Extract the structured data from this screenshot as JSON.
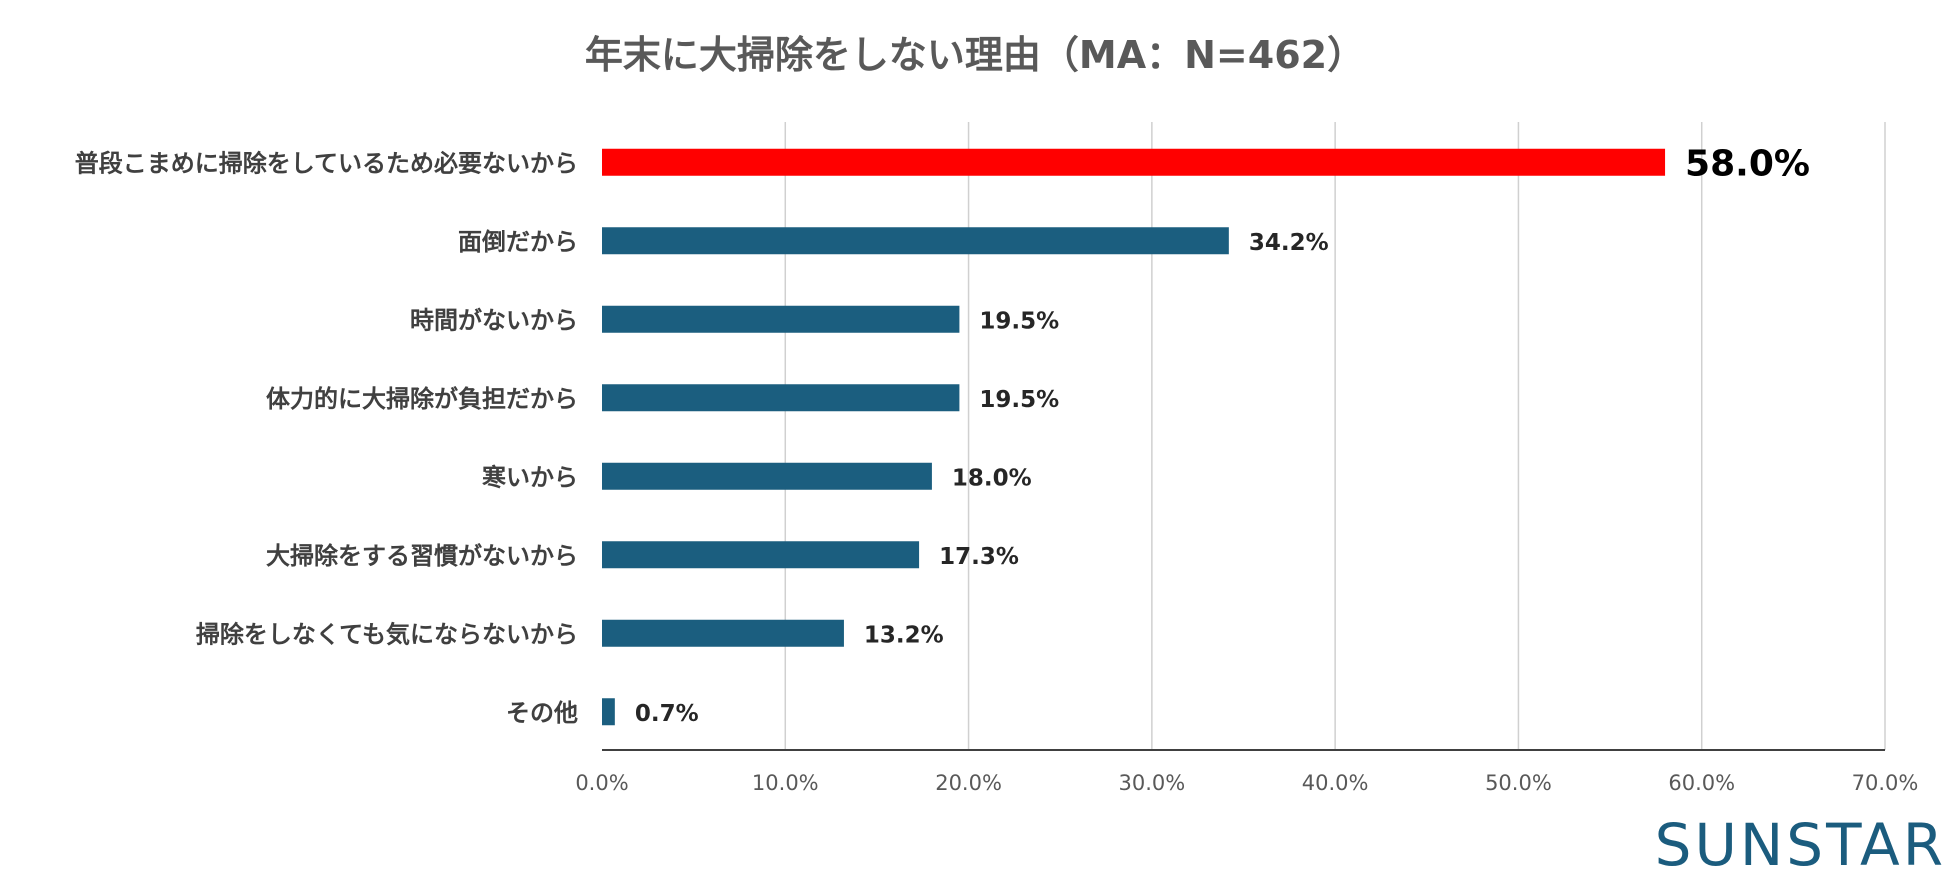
{
  "chart_data": {
    "type": "bar",
    "orientation": "horizontal",
    "title": "年末に大掃除をしない理由（MA：N=462）",
    "categories": [
      "普段こまめに掃除をしているため必要ないから",
      "面倒だから",
      "時間がないから",
      "体力的に大掃除が負担だから",
      "寒いから",
      "大掃除をする習慣がないから",
      "掃除をしなくても気にならないから",
      "その他"
    ],
    "values": [
      58.0,
      34.2,
      19.5,
      19.5,
      18.0,
      17.3,
      13.2,
      0.7
    ],
    "value_labels": [
      "58.0%",
      "34.2%",
      "19.5%",
      "19.5%",
      "18.0%",
      "17.3%",
      "13.2%",
      "0.7%"
    ],
    "xlim": [
      0,
      70
    ],
    "xticks": [
      "0.0%",
      "10.0%",
      "20.0%",
      "30.0%",
      "40.0%",
      "50.0%",
      "60.0%",
      "70.0%"
    ],
    "xlabel": "",
    "ylabel": "",
    "grid": true,
    "colors": {
      "highlight": "#ff0000",
      "default": "#1b5e7f"
    },
    "highlight_index": 0
  },
  "brand": {
    "logo_text": "SUNSTAR",
    "color": "#1b5c7e"
  }
}
